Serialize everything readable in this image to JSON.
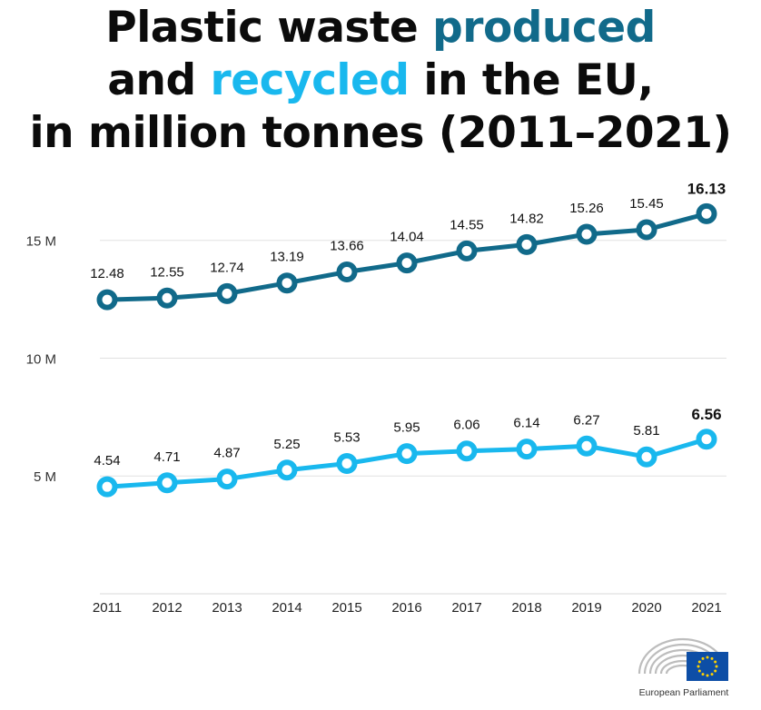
{
  "title": {
    "line1_a": "Plastic waste ",
    "line1_b": "produced",
    "line2_a": "and ",
    "line2_b": "recycled",
    "line2_c": " in the EU,",
    "line3": "in million tonnes (2011–2021)"
  },
  "colors": {
    "produced": "#116a8a",
    "recycled": "#19b8ee",
    "title_text": "#0b0b0b",
    "grid": "#e1e1e1",
    "flag_blue": "#0d4ea6",
    "flag_stars": "#ffd200"
  },
  "chart_data": {
    "type": "line",
    "title": "Plastic waste produced and recycled in the EU, in million tonnes (2011–2021)",
    "x": [
      "2011",
      "2012",
      "2013",
      "2014",
      "2015",
      "2016",
      "2017",
      "2018",
      "2019",
      "2020",
      "2021"
    ],
    "series": [
      {
        "name": "produced",
        "values": [
          12.48,
          12.55,
          12.74,
          13.19,
          13.66,
          14.04,
          14.55,
          14.82,
          15.26,
          15.45,
          16.13
        ],
        "labels": [
          "12.48",
          "12.55",
          "12.74",
          "13.19",
          "13.66",
          "14.04",
          "14.55",
          "14.82",
          "15.26",
          "15.45",
          "16.13"
        ],
        "color": "#116a8a"
      },
      {
        "name": "recycled",
        "values": [
          4.54,
          4.71,
          4.87,
          5.25,
          5.53,
          5.95,
          6.06,
          6.14,
          6.27,
          5.81,
          6.56
        ],
        "labels": [
          "4.54",
          "4.71",
          "4.87",
          "5.25",
          "5.53",
          "5.95",
          "6.06",
          "6.14",
          "6.27",
          "5.81",
          "6.56"
        ],
        "color": "#19b8ee"
      }
    ],
    "y_ticks": [
      {
        "value": 5,
        "label": "5 M"
      },
      {
        "value": 10,
        "label": "10 M"
      },
      {
        "value": 15,
        "label": "15 M"
      }
    ],
    "ylim": [
      0,
      16.8
    ],
    "grid": true,
    "legend": "none (series named by title colours)",
    "xlabel": "",
    "ylabel": ""
  },
  "logo": {
    "name": "european-parliament-logo",
    "caption": "European Parliament"
  }
}
